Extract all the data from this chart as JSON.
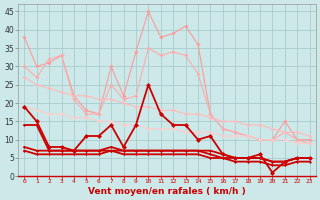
{
  "x": [
    0,
    1,
    2,
    3,
    4,
    5,
    6,
    7,
    8,
    9,
    10,
    11,
    12,
    13,
    14,
    15,
    16,
    17,
    18,
    19,
    20,
    21,
    22,
    23
  ],
  "series": [
    {
      "name": "rafales_max",
      "color": "#ff9999",
      "linewidth": 0.8,
      "markersize": 2.0,
      "values": [
        38,
        30,
        31,
        33,
        22,
        18,
        17,
        30,
        22,
        34,
        45,
        38,
        39,
        41,
        36,
        17,
        13,
        12,
        11,
        10,
        10,
        15,
        10,
        10
      ]
    },
    {
      "name": "rafales_mean",
      "color": "#ffaaaa",
      "linewidth": 0.8,
      "markersize": 2.0,
      "values": [
        30,
        27,
        32,
        33,
        21,
        17,
        17,
        25,
        21,
        22,
        35,
        33,
        34,
        33,
        28,
        17,
        13,
        12,
        11,
        10,
        10,
        12,
        10,
        9
      ]
    },
    {
      "name": "vent_moyen_trend1",
      "color": "#ffbbbb",
      "linewidth": 0.8,
      "markersize": 2.0,
      "values": [
        27,
        25,
        24,
        23,
        22,
        22,
        21,
        21,
        20,
        19,
        19,
        18,
        18,
        17,
        17,
        16,
        15,
        15,
        14,
        14,
        13,
        12,
        12,
        11
      ]
    },
    {
      "name": "vent_moyen_trend2",
      "color": "#ffcccc",
      "linewidth": 0.8,
      "markersize": 2.0,
      "values": [
        19,
        18,
        17,
        17,
        16,
        16,
        15,
        15,
        14,
        14,
        13,
        13,
        13,
        12,
        12,
        12,
        11,
        11,
        11,
        10,
        10,
        10,
        9,
        9
      ]
    },
    {
      "name": "vent_moyen",
      "color": "#cc0000",
      "linewidth": 1.3,
      "markersize": 2.5,
      "values": [
        19,
        15,
        8,
        8,
        7,
        11,
        11,
        14,
        8,
        14,
        25,
        17,
        14,
        14,
        10,
        11,
        6,
        5,
        5,
        6,
        1,
        4,
        5,
        5
      ]
    },
    {
      "name": "vent_flat1",
      "color": "#cc0000",
      "linewidth": 1.3,
      "markersize": 1.5,
      "values": [
        14,
        14,
        7,
        7,
        7,
        7,
        7,
        7,
        7,
        7,
        7,
        7,
        7,
        7,
        7,
        7,
        6,
        5,
        5,
        5,
        4,
        4,
        5,
        5
      ]
    },
    {
      "name": "vent_flat2",
      "color": "#cc0000",
      "linewidth": 1.3,
      "markersize": 1.5,
      "values": [
        8,
        7,
        7,
        7,
        7,
        7,
        7,
        8,
        7,
        7,
        7,
        7,
        7,
        7,
        7,
        6,
        5,
        5,
        5,
        5,
        4,
        4,
        5,
        5
      ]
    },
    {
      "name": "vent_flat3",
      "color": "#cc0000",
      "linewidth": 1.3,
      "markersize": 1.5,
      "values": [
        7,
        6,
        6,
        6,
        6,
        6,
        6,
        7,
        6,
        6,
        6,
        6,
        6,
        6,
        6,
        5,
        5,
        4,
        4,
        4,
        3,
        3,
        4,
        4
      ]
    }
  ],
  "xlabel": "Vent moyen/en rafales ( km/h )",
  "ylim": [
    0,
    47
  ],
  "yticks": [
    0,
    5,
    10,
    15,
    20,
    25,
    30,
    35,
    40,
    45
  ],
  "xlim": [
    -0.5,
    23.5
  ],
  "xticks": [
    0,
    1,
    2,
    3,
    4,
    5,
    6,
    7,
    8,
    9,
    10,
    11,
    12,
    13,
    14,
    15,
    16,
    17,
    18,
    19,
    20,
    21,
    22,
    23
  ],
  "background_color": "#cce8e8",
  "grid_color": "#aacccc",
  "xlabel_color": "#cc0000",
  "tick_color": "#cc0000",
  "ytick_color": "#333333"
}
